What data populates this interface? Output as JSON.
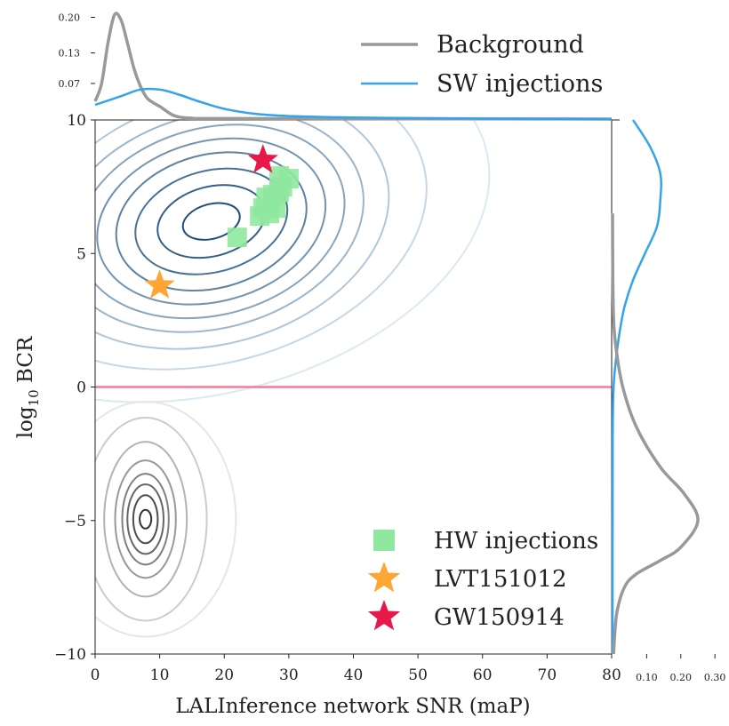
{
  "chart_data": {
    "type": "contour-scatter-joint",
    "xlabel": "LALInference network SNR (maP)",
    "ylabel": "log",
    "ylabel_sub": "10",
    "ylabel_tail": " BCR",
    "xlim": [
      0,
      80
    ],
    "ylim": [
      -10,
      10
    ],
    "xticks": [
      0,
      10,
      20,
      30,
      40,
      50,
      60,
      70,
      80
    ],
    "yticks": [
      -10,
      -5,
      0,
      5,
      10
    ],
    "xtick_labels": [
      "0",
      "10",
      "20",
      "30",
      "40",
      "50",
      "60",
      "70",
      "80"
    ],
    "ytick_labels": [
      "−10",
      "−5",
      "0",
      "5",
      "10"
    ],
    "threshold_line": {
      "y": 0,
      "color": "#f07ca0"
    },
    "contour_sets": [
      {
        "name": "SW injections",
        "color_dark": "#1f4e7a",
        "color_light": "#dbe9f3",
        "center": [
          18,
          6.2
        ],
        "levels": [
          {
            "rx": 4.5,
            "ry": 0.65
          },
          {
            "rx": 8.5,
            "ry": 1.3
          },
          {
            "rx": 12,
            "ry": 1.9
          },
          {
            "rx": 15,
            "ry": 2.5
          },
          {
            "rx": 18,
            "ry": 3.0
          },
          {
            "rx": 21,
            "ry": 3.5
          },
          {
            "rx": 24,
            "ry": 4.0
          },
          {
            "rx": 28,
            "ry": 4.6
          },
          {
            "rx": 34,
            "ry": 5.3
          },
          {
            "rx": 44,
            "ry": 6.4
          }
        ],
        "tilt_deg": -15
      },
      {
        "name": "Background",
        "color_dark": "#333333",
        "color_light": "#e6e6e6",
        "center": [
          7.8,
          -4.95
        ],
        "levels": [
          {
            "rx": 0.9,
            "ry": 0.35
          },
          {
            "rx": 1.9,
            "ry": 0.9
          },
          {
            "rx": 2.8,
            "ry": 1.3
          },
          {
            "rx": 3.6,
            "ry": 1.7
          },
          {
            "rx": 4.7,
            "ry": 2.2
          },
          {
            "rx": 6.4,
            "ry": 2.9
          },
          {
            "rx": 9.5,
            "ry": 3.8
          },
          {
            "rx": 14,
            "ry": 4.4
          }
        ],
        "tilt_deg": 0
      }
    ],
    "series": [
      {
        "name": "HW injections",
        "marker": "square",
        "color": "#8fe89f",
        "points": [
          [
            22,
            5.6
          ],
          [
            25.5,
            6.4
          ],
          [
            26,
            6.7
          ],
          [
            27,
            6.5
          ],
          [
            28,
            6.7
          ],
          [
            26.5,
            7.1
          ],
          [
            27.5,
            7.2
          ],
          [
            28.5,
            7.3
          ],
          [
            29,
            7.5
          ],
          [
            30,
            7.8
          ],
          [
            28.5,
            7.9
          ]
        ]
      },
      {
        "name": "LVT151012",
        "marker": "star",
        "color": "#ffa533",
        "points": [
          [
            10,
            3.8
          ]
        ]
      },
      {
        "name": "GW150914",
        "marker": "star",
        "color": "#e8184b",
        "points": [
          [
            26,
            8.5
          ]
        ]
      }
    ],
    "top_marginal": {
      "yticks": [
        0.07,
        0.13,
        0.2
      ],
      "ytick_labels": [
        "0.07",
        "0.13",
        "0.20"
      ],
      "ylim": [
        0,
        0.22
      ],
      "curves": [
        {
          "name": "Background",
          "color": "#999999",
          "points": [
            [
              0,
              0.035
            ],
            [
              1,
              0.07
            ],
            [
              2,
              0.15
            ],
            [
              3,
              0.205
            ],
            [
              4,
              0.195
            ],
            [
              5,
              0.15
            ],
            [
              6,
              0.1
            ],
            [
              7,
              0.065
            ],
            [
              8,
              0.042
            ],
            [
              9,
              0.032
            ],
            [
              10,
              0.025
            ],
            [
              11,
              0.016
            ],
            [
              12,
              0.008
            ],
            [
              13,
              0.004
            ],
            [
              15,
              0.002
            ],
            [
              20,
              0.001
            ],
            [
              80,
              0.0
            ]
          ]
        },
        {
          "name": "SW injections",
          "color": "#33a4ec",
          "points": [
            [
              0,
              0.028
            ],
            [
              4,
              0.045
            ],
            [
              7,
              0.058
            ],
            [
              10,
              0.058
            ],
            [
              13,
              0.048
            ],
            [
              16,
              0.035
            ],
            [
              20,
              0.02
            ],
            [
              25,
              0.01
            ],
            [
              30,
              0.006
            ],
            [
              40,
              0.003
            ],
            [
              50,
              0.002
            ],
            [
              60,
              0.001
            ],
            [
              80,
              0.0
            ]
          ]
        }
      ]
    },
    "right_marginal": {
      "xticks": [
        0.1,
        0.2,
        0.3
      ],
      "xtick_labels": [
        "0.10",
        "0.20",
        "0.30"
      ],
      "xlim": [
        0,
        0.31
      ],
      "curves": [
        {
          "name": "SW injections",
          "color": "#33a4ec",
          "points": [
            [
              10,
              0.06
            ],
            [
              9,
              0.11
            ],
            [
              8,
              0.14
            ],
            [
              7,
              0.14
            ],
            [
              6,
              0.13
            ],
            [
              5,
              0.095
            ],
            [
              4,
              0.06
            ],
            [
              3,
              0.035
            ],
            [
              2,
              0.02
            ],
            [
              1,
              0.01
            ],
            [
              0,
              0.003
            ],
            [
              -2,
              0.0005
            ],
            [
              -10,
              0.0
            ]
          ]
        },
        {
          "name": "Background",
          "color": "#999999",
          "points": [
            [
              6.5,
              0.0
            ],
            [
              3,
              0.002
            ],
            [
              1.5,
              0.01
            ],
            [
              0,
              0.03
            ],
            [
              -1.5,
              0.07
            ],
            [
              -3,
              0.14
            ],
            [
              -4,
              0.21
            ],
            [
              -5,
              0.25
            ],
            [
              -6,
              0.2
            ],
            [
              -6.5,
              0.14
            ],
            [
              -7,
              0.07
            ],
            [
              -7.5,
              0.035
            ],
            [
              -8.5,
              0.012
            ],
            [
              -10,
              0.003
            ]
          ]
        }
      ]
    },
    "legend_top": [
      {
        "label": "Background",
        "color": "#999999"
      },
      {
        "label": "SW injections",
        "color": "#33a4ec"
      }
    ],
    "legend_main": [
      {
        "label": "HW injections",
        "marker": "square",
        "color": "#8fe89f"
      },
      {
        "label": "LVT151012",
        "marker": "star",
        "color": "#ffa533"
      },
      {
        "label": "GW150914",
        "marker": "star",
        "color": "#e8184b"
      }
    ]
  }
}
